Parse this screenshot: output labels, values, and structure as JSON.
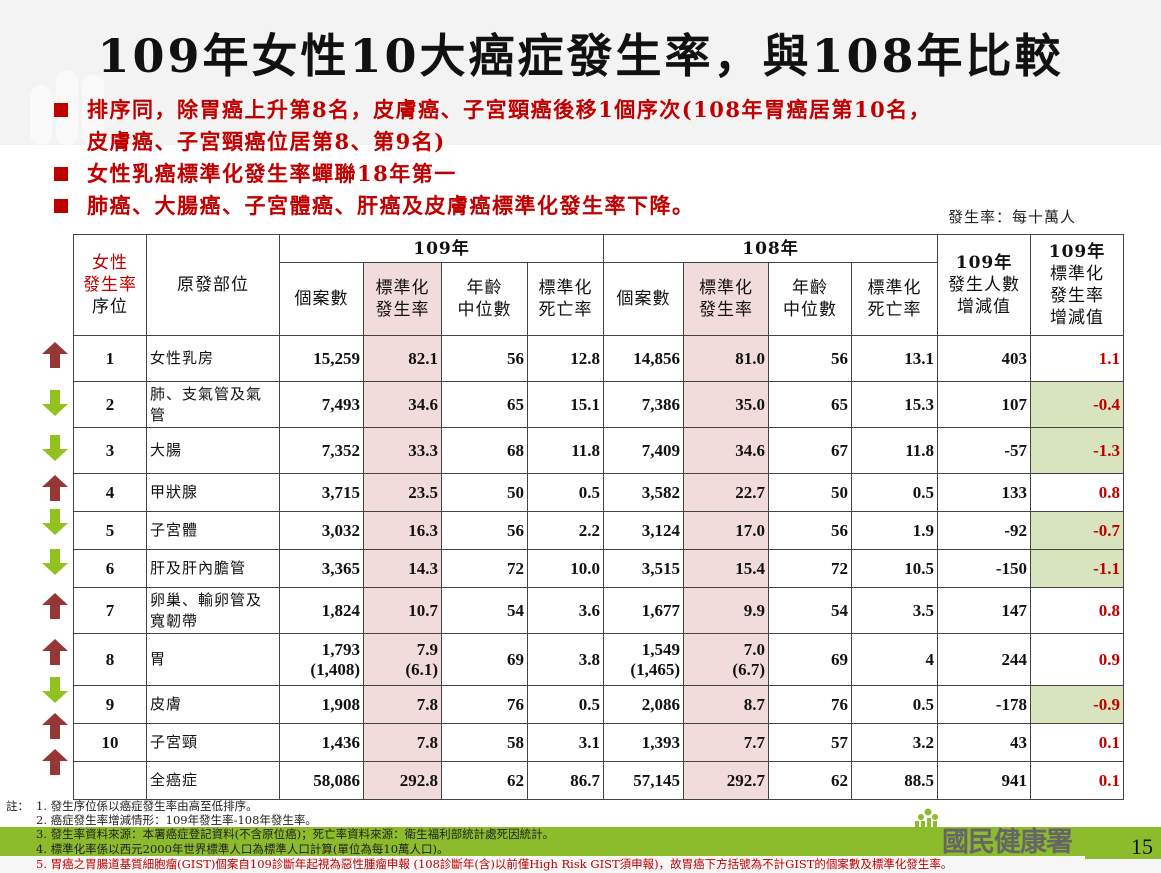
{
  "slide": {
    "title": "109年女性10大癌症發生率，與108年比較",
    "bullets": [
      "排序同，除胃癌上升第8名，皮膚癌、子宮頸癌後移1個序次(108年胃癌居第10名，",
      "皮膚癌、子宮頸癌位居第8、第9名)",
      "女性乳癌標準化發生率蟬聯18年第一",
      "肺癌、大腸癌、子宮體癌、肝癌及皮膚癌標準化發生率下降。"
    ],
    "unit_note": "發生率：每十萬人",
    "page_number": "15",
    "logo_text": "國民健康署"
  },
  "table": {
    "header": {
      "rank_line1": "女性",
      "rank_line2": "發生率",
      "rank_line3": "序位",
      "site": "原發部位",
      "year_109": "109年",
      "year_108": "108年",
      "cases": "個案數",
      "std_inc_1": "標準化",
      "std_inc_2": "發生率",
      "median_age_1": "年齡",
      "median_age_2": "中位數",
      "std_mort_1": "標準化",
      "std_mort_2": "死亡率",
      "case_diff_1": "109年",
      "case_diff_2": "發生人數",
      "case_diff_3": "增減值",
      "rate_diff_1": "109年",
      "rate_diff_2": "標準化",
      "rate_diff_3": "發生率",
      "rate_diff_4": "增減值"
    },
    "rows": [
      {
        "trend": "up",
        "rank": "1",
        "site": "女性乳房",
        "c109": "15,259",
        "r109": "82.1",
        "a109": "56",
        "m109": "12.8",
        "c108": "14,856",
        "r108": "81.0",
        "a108": "56",
        "m108": "13.1",
        "dcase": "403",
        "drate": "1.1",
        "highlight": false
      },
      {
        "trend": "down",
        "rank": "2",
        "site": "肺、支氣管及氣管",
        "c109": "7,493",
        "r109": "34.6",
        "a109": "65",
        "m109": "15.1",
        "c108": "7,386",
        "r108": "35.0",
        "a108": "65",
        "m108": "15.3",
        "dcase": "107",
        "drate": "-0.4",
        "highlight": true
      },
      {
        "trend": "down",
        "rank": "3",
        "site": "大腸",
        "c109": "7,352",
        "r109": "33.3",
        "a109": "68",
        "m109": "11.8",
        "c108": "7,409",
        "r108": "34.6",
        "a108": "67",
        "m108": "11.8",
        "dcase": "-57",
        "drate": "-1.3",
        "highlight": true
      },
      {
        "trend": "up",
        "rank": "4",
        "site": "甲狀腺",
        "c109": "3,715",
        "r109": "23.5",
        "a109": "50",
        "m109": "0.5",
        "c108": "3,582",
        "r108": "22.7",
        "a108": "50",
        "m108": "0.5",
        "dcase": "133",
        "drate": "0.8",
        "highlight": false
      },
      {
        "trend": "down",
        "rank": "5",
        "site": "子宮體",
        "c109": "3,032",
        "r109": "16.3",
        "a109": "56",
        "m109": "2.2",
        "c108": "3,124",
        "r108": "17.0",
        "a108": "56",
        "m108": "1.9",
        "dcase": "-92",
        "drate": "-0.7",
        "highlight": true
      },
      {
        "trend": "down",
        "rank": "6",
        "site": "肝及肝內膽管",
        "c109": "3,365",
        "r109": "14.3",
        "a109": "72",
        "m109": "10.0",
        "c108": "3,515",
        "r108": "15.4",
        "a108": "72",
        "m108": "10.5",
        "dcase": "-150",
        "drate": "-1.1",
        "highlight": true
      },
      {
        "trend": "up",
        "rank": "7",
        "site": "卵巢、輸卵管及寬韌帶",
        "c109": "1,824",
        "r109": "10.7",
        "a109": "54",
        "m109": "3.6",
        "c108": "1,677",
        "r108": "9.9",
        "a108": "54",
        "m108": "3.5",
        "dcase": "147",
        "drate": "0.8",
        "highlight": false
      },
      {
        "trend": "up",
        "rank": "8",
        "site": "胃",
        "c109": "1,793",
        "c109b": "(1,408)",
        "r109": "7.9",
        "r109b": "(6.1)",
        "a109": "69",
        "m109": "3.8",
        "c108": "1,549",
        "c108b": "(1,465)",
        "r108": "7.0",
        "r108b": "(6.7)",
        "a108": "69",
        "m108": "4",
        "dcase": "244",
        "drate": "0.9",
        "highlight": false
      },
      {
        "trend": "down",
        "rank": "9",
        "site": "皮膚",
        "c109": "1,908",
        "r109": "7.8",
        "a109": "76",
        "m109": "0.5",
        "c108": "2,086",
        "r108": "8.7",
        "a108": "76",
        "m108": "0.5",
        "dcase": "-178",
        "drate": "-0.9",
        "highlight": true
      },
      {
        "trend": "up",
        "rank": "10",
        "site": "子宮頸",
        "c109": "1,436",
        "r109": "7.8",
        "a109": "58",
        "m109": "3.1",
        "c108": "1,393",
        "r108": "7.7",
        "a108": "57",
        "m108": "3.2",
        "dcase": "43",
        "drate": "0.1",
        "highlight": false
      },
      {
        "trend": "up",
        "rank": "",
        "site": "全癌症",
        "c109": "58,086",
        "r109": "292.8",
        "a109": "62",
        "m109": "86.7",
        "c108": "57,145",
        "r108": "292.7",
        "a108": "62",
        "m108": "88.5",
        "dcase": "941",
        "drate": "0.1",
        "highlight": false
      }
    ]
  },
  "notes": {
    "label": "註：",
    "items": [
      "1. 發生序位係以癌症發生率由高至低排序。",
      "2. 癌症發生率增減情形：109年發生率-108年發生率。",
      "3. 發生率資料來源：本署癌症登記資料(不含原位癌)；死亡率資料來源：衛生福利部統計處死因統計。",
      "4. 標準化率係以西元2000年世界標準人口為標準人口計算(單位為每10萬人口)。",
      "5. 胃癌之胃腸道基質細胞瘤(GIST)個案自109診斷年起視為惡性腫瘤申報 (108診斷年(含)以前僅High Risk GIST須申報)，故胃癌下方括號為不計GIST的個案數及標準化發生率。"
    ]
  },
  "colors": {
    "title_red": "#c00000",
    "pink_highlight": "#f2dcdb",
    "green_highlight": "#d7e4bd",
    "arrow_up": "#953735",
    "arrow_down": "#92c21e",
    "footer_green": "#8cbb2c"
  }
}
